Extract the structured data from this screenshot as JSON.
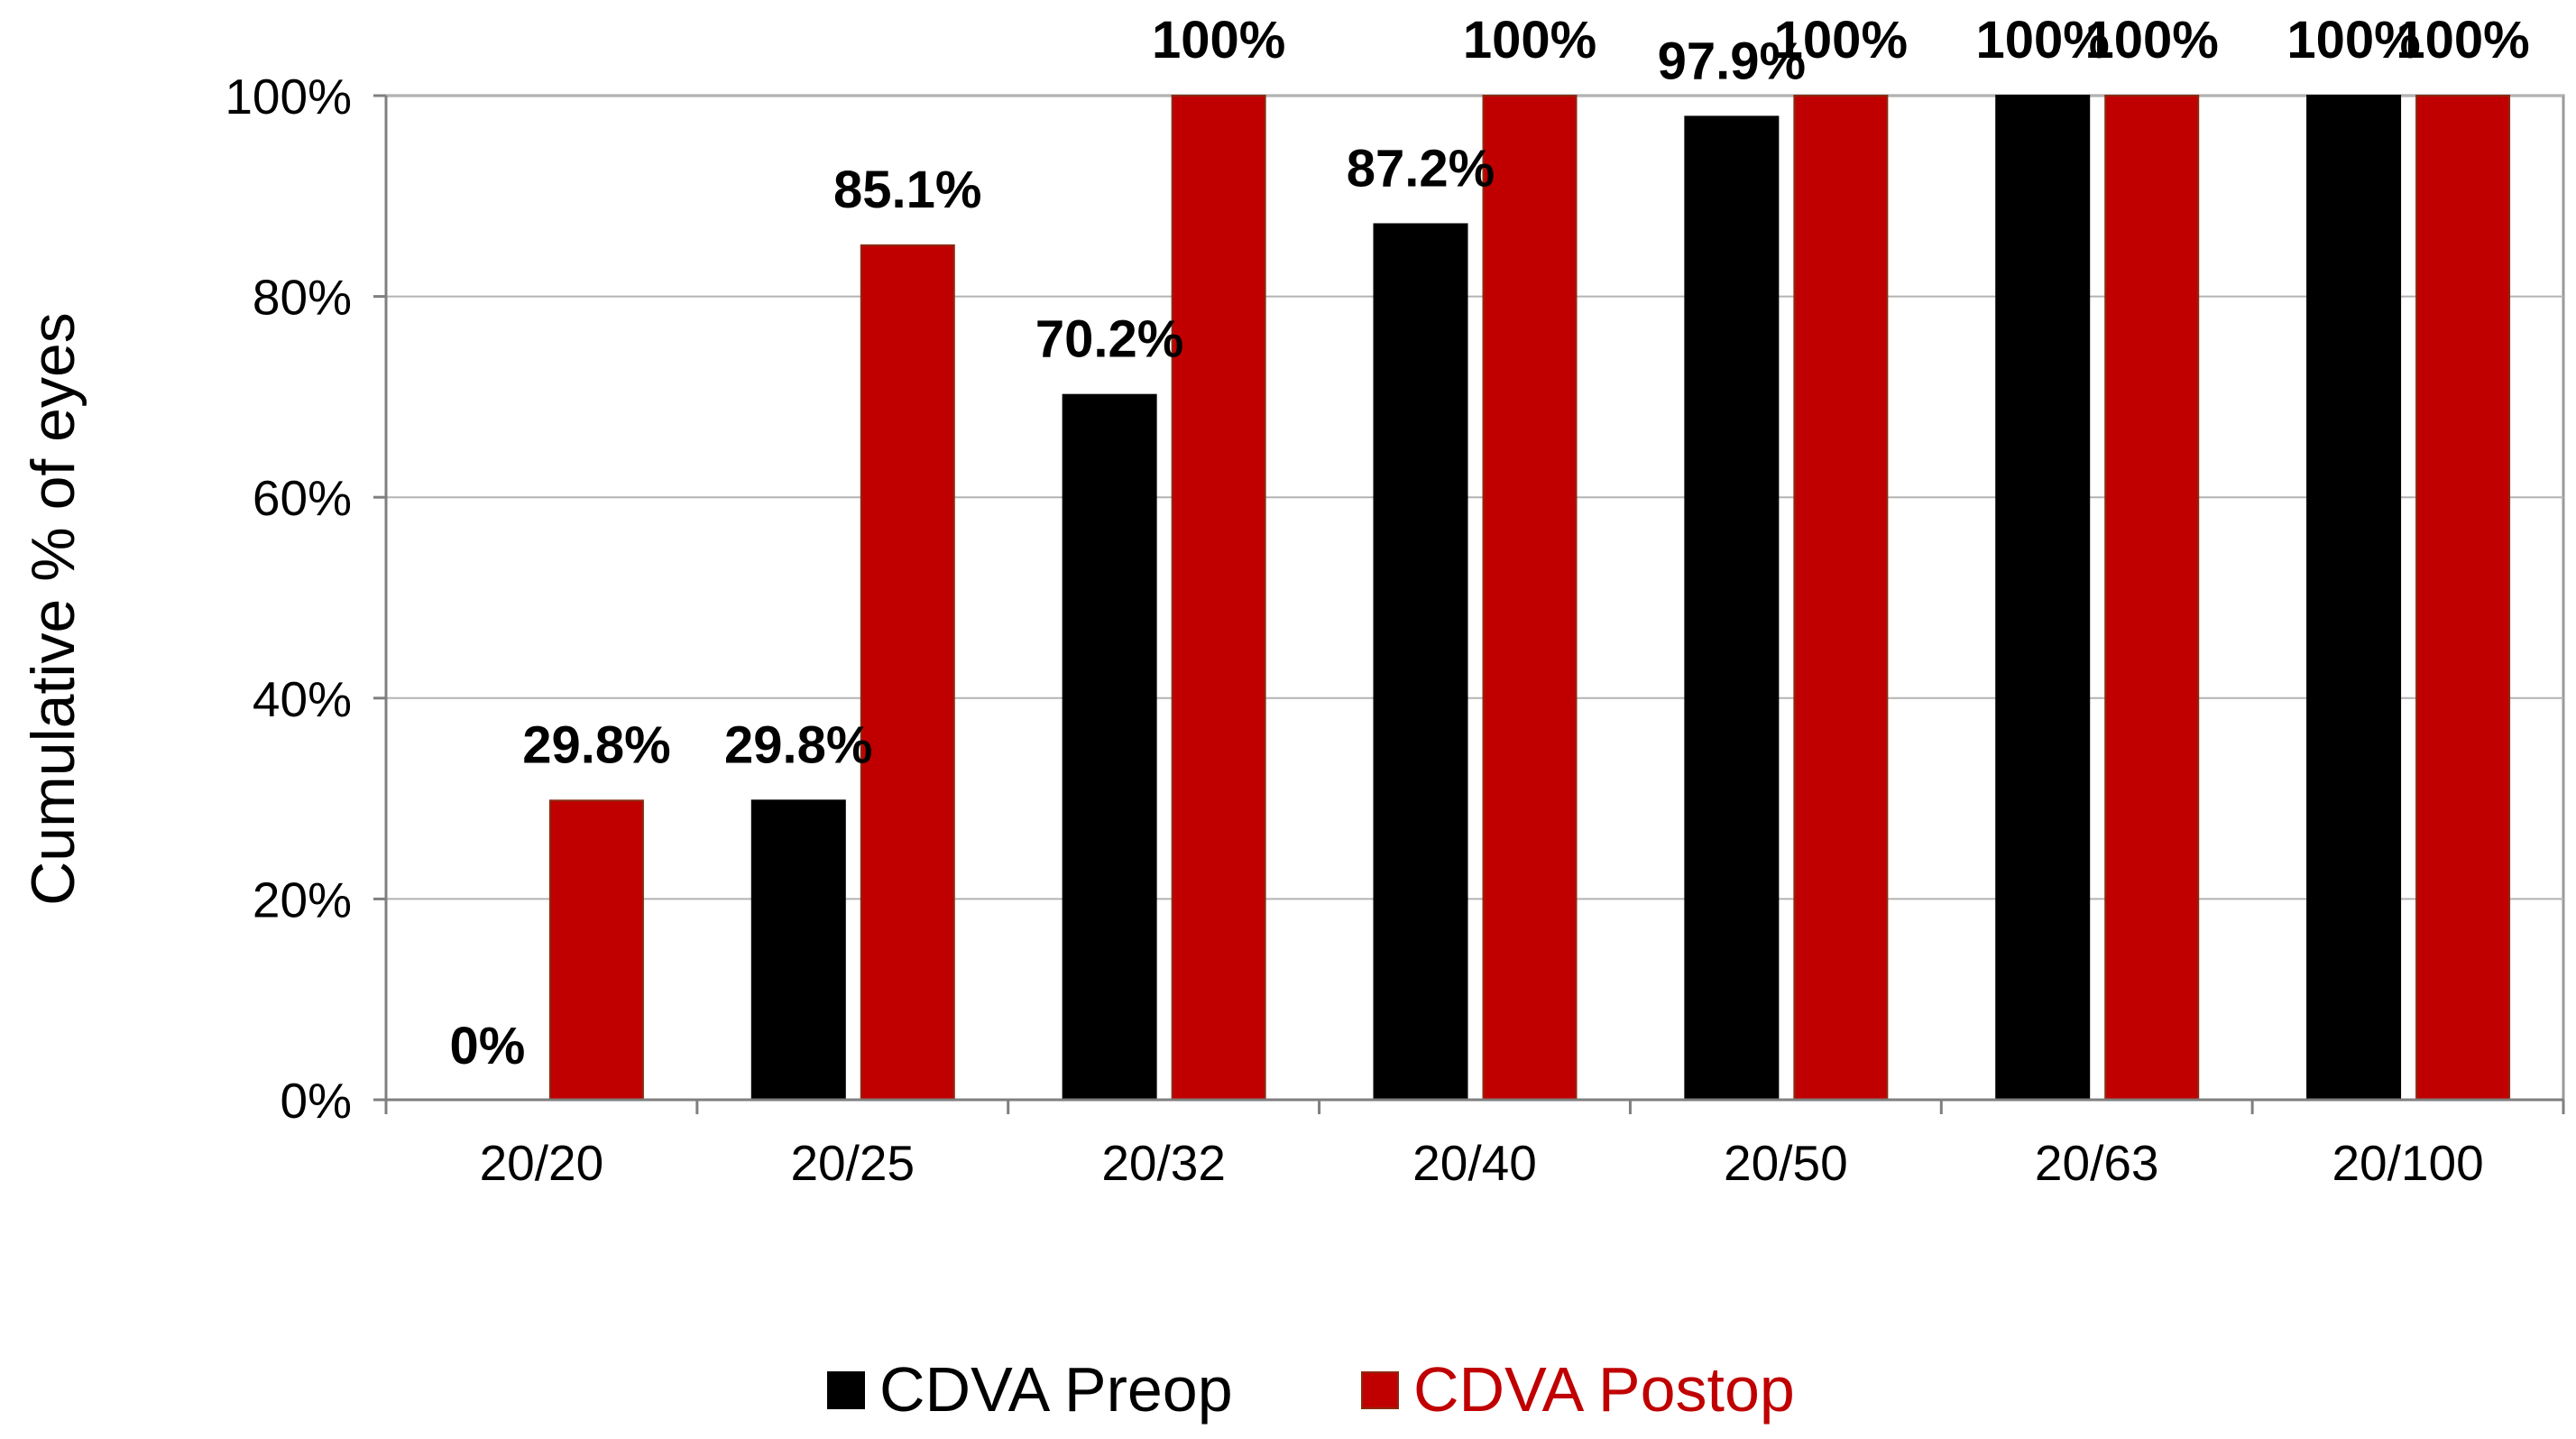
{
  "chart_data": {
    "type": "bar",
    "title": "",
    "xlabel": "",
    "ylabel": "Cumulative % of eyes",
    "ylim": [
      0,
      100
    ],
    "yticks": [
      0,
      20,
      40,
      60,
      80,
      100
    ],
    "ytick_labels": [
      "0%",
      "20%",
      "40%",
      "60%",
      "80%",
      "100%"
    ],
    "grid": true,
    "legend_position": "bottom",
    "categories": [
      "20/20",
      "20/25",
      "20/32",
      "20/40",
      "20/50",
      "20/63",
      "20/100"
    ],
    "series": [
      {
        "name": "CDVA Preop",
        "color": "#000000",
        "legend_text_color": "#000000",
        "values": [
          0,
          29.8,
          70.2,
          87.2,
          97.9,
          100,
          100
        ],
        "labels": [
          "0%",
          "29.8%",
          "70.2%",
          "87.2%",
          "97.9%",
          "100%",
          "100%"
        ]
      },
      {
        "name": "CDVA Postop",
        "color": "#c00000",
        "legend_text_color": "#c00000",
        "values": [
          29.8,
          85.1,
          100,
          100,
          100,
          100,
          100
        ],
        "labels": [
          "29.8%",
          "85.1%",
          "100%",
          "100%",
          "100%",
          "100%",
          "100%"
        ]
      }
    ]
  }
}
